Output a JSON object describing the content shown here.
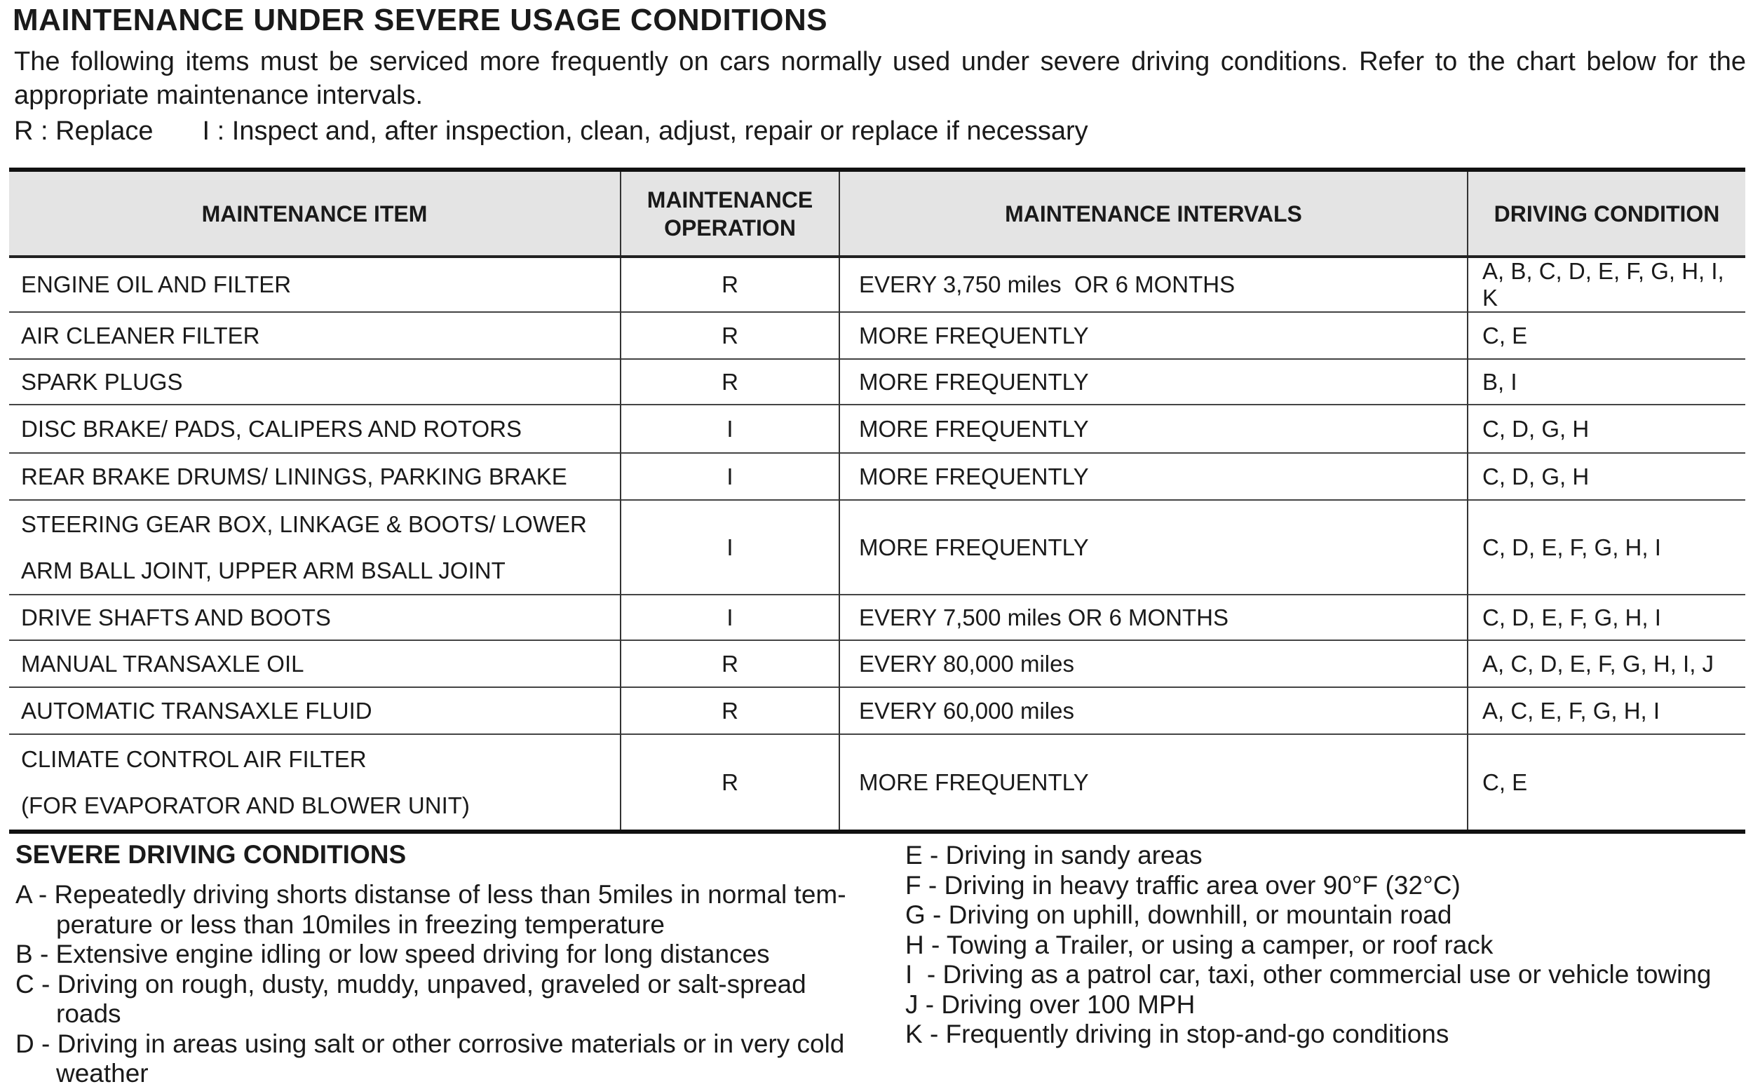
{
  "title": "MAINTENANCE UNDER SEVERE USAGE CONDITIONS",
  "intro": "The following items must be serviced more frequently on cars normally used under severe driving conditions. Refer to the chart below for the appropriate maintenance intervals.",
  "legend": {
    "replace": "R : Replace",
    "inspect": "I : Inspect and, after inspection, clean, adjust, repair or replace if necessary"
  },
  "table": {
    "headers": [
      "MAINTENANCE ITEM",
      "MAINTENANCE OPERATION",
      "MAINTENANCE INTERVALS",
      "DRIVING CONDITION"
    ],
    "rows": [
      {
        "item": "ENGINE OIL AND FILTER",
        "op": "R",
        "interval": "EVERY 3,750 miles  OR 6 MONTHS",
        "cond": "A, B, C, D, E, F, G, H, I, K"
      },
      {
        "item": "AIR CLEANER FILTER",
        "op": "R",
        "interval": "MORE FREQUENTLY",
        "cond": "C, E"
      },
      {
        "item": "SPARK PLUGS",
        "op": "R",
        "interval": "MORE FREQUENTLY",
        "cond": "B, I"
      },
      {
        "item": "DISC BRAKE/ PADS, CALIPERS AND ROTORS",
        "op": "I",
        "interval": "MORE FREQUENTLY",
        "cond": "C, D, G, H"
      },
      {
        "item": "REAR BRAKE DRUMS/ LININGS, PARKING BRAKE",
        "op": "I",
        "interval": "MORE FREQUENTLY",
        "cond": "C, D, G, H"
      },
      {
        "item": "STEERING GEAR BOX, LINKAGE & BOOTS/ LOWER",
        "item2": "ARM BALL JOINT, UPPER ARM BSALL JOINT",
        "op": "I",
        "interval": "MORE FREQUENTLY",
        "cond": "C, D, E, F, G, H, I"
      },
      {
        "item": "DRIVE SHAFTS AND BOOTS",
        "op": "I",
        "interval": "EVERY 7,500 miles OR 6 MONTHS",
        "cond": "C, D, E, F, G, H, I"
      },
      {
        "item": "MANUAL TRANSAXLE OIL",
        "op": "R",
        "interval": "EVERY 80,000 miles",
        "cond": "A, C, D, E, F, G, H, I, J"
      },
      {
        "item": "AUTOMATIC TRANSAXLE FLUID",
        "op": "R",
        "interval": "EVERY 60,000 miles",
        "cond": "A, C, E, F, G, H, I"
      },
      {
        "item": "CLIMATE CONTROL AIR FILTER",
        "item2": "(FOR EVAPORATOR AND BLOWER UNIT)",
        "op": "R",
        "interval": "MORE FREQUENTLY",
        "cond": "C, E"
      }
    ]
  },
  "severe": {
    "heading": "SEVERE DRIVING CONDITIONS",
    "conditions": [
      "A - Repeatedly driving shorts distanse of less than 5miles in normal tem-perature or less than 10miles in freezing temperature",
      "B - Extensive engine idling or low speed driving for long distances",
      "C - Driving on rough, dusty, muddy, unpaved, graveled or salt-spread roads",
      "D - Driving in areas using salt or other corrosive materials or in very cold weather",
      "E - Driving in sandy areas",
      "F - Driving in heavy traffic area over 90°F (32°C)",
      "G - Driving on uphill, downhill, or mountain road",
      "H - Towing a Trailer, or using a camper, or roof rack",
      "I  - Driving as a patrol car, taxi, other commercial use or vehicle towing",
      "J - Driving over 100 MPH",
      "K - Frequently driving in stop-and-go conditions"
    ]
  }
}
